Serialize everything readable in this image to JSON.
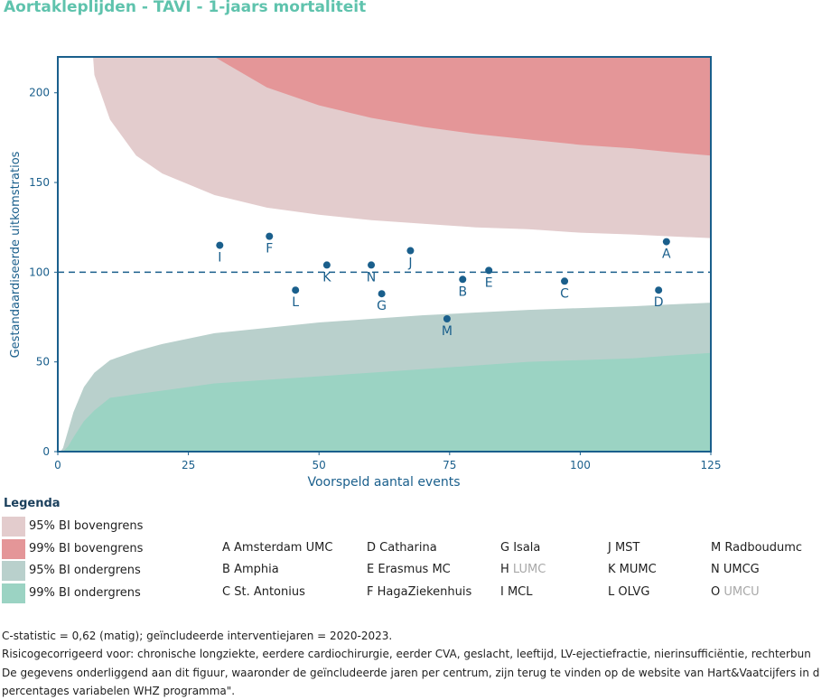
{
  "title": "Aortakleplijden - TAVI - 1-jaars mortaliteit",
  "chart_data": {
    "type": "scatter",
    "title": "Aortakleplijden - TAVI - 1-jaars mortaliteit",
    "xlabel": "Voorspeld aantal events",
    "ylabel": "Gestandaardiseerde uitkomstratios",
    "xlim": [
      0,
      125
    ],
    "ylim": [
      0,
      220
    ],
    "xticks": [
      "0",
      "25",
      "50",
      "75",
      "100",
      "125"
    ],
    "yticks": [
      "0",
      "50",
      "100",
      "150",
      "200"
    ],
    "reference_line": 100,
    "bands": {
      "x": [
        1,
        2,
        3,
        5,
        7,
        10,
        15,
        20,
        30,
        40,
        50,
        60,
        70,
        80,
        90,
        100,
        110,
        117,
        125
      ],
      "upper95": [
        null,
        null,
        null,
        null,
        210,
        185,
        165,
        155,
        143,
        136,
        132,
        129,
        127,
        125,
        124,
        122,
        121,
        120,
        119
      ],
      "upper99": [
        null,
        null,
        null,
        null,
        null,
        null,
        null,
        null,
        220,
        203,
        193,
        186,
        181,
        177,
        174,
        171,
        169,
        167,
        165
      ],
      "lower95": [
        2,
        12,
        22,
        36,
        44,
        51,
        56,
        60,
        66,
        69,
        72,
        74,
        76,
        77.5,
        79,
        80,
        81,
        82,
        83
      ],
      "lower99": [
        0,
        3,
        8,
        17,
        23,
        30,
        32,
        34,
        38,
        40,
        42,
        44,
        46,
        48,
        50,
        51,
        52,
        53.5,
        55
      ]
    },
    "points": [
      {
        "label": "A",
        "x": 116.5,
        "y": 117
      },
      {
        "label": "B",
        "x": 77.5,
        "y": 96
      },
      {
        "label": "C",
        "x": 97,
        "y": 95
      },
      {
        "label": "D",
        "x": 115,
        "y": 90
      },
      {
        "label": "E",
        "x": 82.5,
        "y": 101
      },
      {
        "label": "F",
        "x": 40.5,
        "y": 120
      },
      {
        "label": "G",
        "x": 62,
        "y": 88
      },
      {
        "label": "I",
        "x": 31,
        "y": 115
      },
      {
        "label": "J",
        "x": 67.5,
        "y": 112
      },
      {
        "label": "K",
        "x": 51.5,
        "y": 104
      },
      {
        "label": "L",
        "x": 45.5,
        "y": 90
      },
      {
        "label": "M",
        "x": 74.5,
        "y": 74
      },
      {
        "label": "N",
        "x": 60,
        "y": 104
      }
    ],
    "colors": {
      "upper95": "#e3cccd",
      "upper99": "#e49698",
      "lower95": "#b9d0cc",
      "lower99": "#9bd3c3",
      "point": "#1a5f8c",
      "axis": "#1a5f8c",
      "frame": "#1a5f8c"
    }
  },
  "legend": {
    "heading": "Legenda",
    "bands": [
      {
        "label": "95% BI bovengrens",
        "color": "#e3cccd"
      },
      {
        "label": "99% BI bovengrens",
        "color": "#e49698"
      },
      {
        "label": "95% BI ondergrens",
        "color": "#b9d0cc"
      },
      {
        "label": "99% BI ondergrens",
        "color": "#9bd3c3"
      }
    ],
    "centres": [
      {
        "letter": "A",
        "name": "Amsterdam UMC",
        "muted": false
      },
      {
        "letter": "B",
        "name": "Amphia",
        "muted": false
      },
      {
        "letter": "C",
        "name": "St. Antonius",
        "muted": false
      },
      {
        "letter": "D",
        "name": "Catharina",
        "muted": false
      },
      {
        "letter": "E",
        "name": "Erasmus MC",
        "muted": false
      },
      {
        "letter": "F",
        "name": "HagaZiekenhuis",
        "muted": false
      },
      {
        "letter": "G",
        "name": "Isala",
        "muted": false
      },
      {
        "letter": "H",
        "name": "LUMC",
        "muted": true
      },
      {
        "letter": "I",
        "name": "MCL",
        "muted": false
      },
      {
        "letter": "J",
        "name": "MST",
        "muted": false
      },
      {
        "letter": "K",
        "name": "MUMC",
        "muted": false
      },
      {
        "letter": "L",
        "name": "OLVG",
        "muted": false
      },
      {
        "letter": "M",
        "name": "Radboudumc",
        "muted": false
      },
      {
        "letter": "N",
        "name": "UMCG",
        "muted": false
      },
      {
        "letter": "O",
        "name": "UMCU",
        "muted": true
      }
    ]
  },
  "footer": {
    "line1": "C-statistic = 0,62 (matig); geïncludeerde interventiejaren = 2020-2023.",
    "line2": "Risicogecorrigeerd voor: chronische longziekte, eerdere cardiochirurgie, eerder CVA, geslacht, leeftijd, LV-ejectiefractie, nierinsufficiëntie, rechterbun",
    "line3": "De gegevens onderliggend aan dit figuur, waaronder de geïncludeerde jaren per centrum, zijn terug te vinden op de website van Hart&Vaatcijfers in d",
    "line4": "percentages variabelen WHZ programma\"."
  }
}
